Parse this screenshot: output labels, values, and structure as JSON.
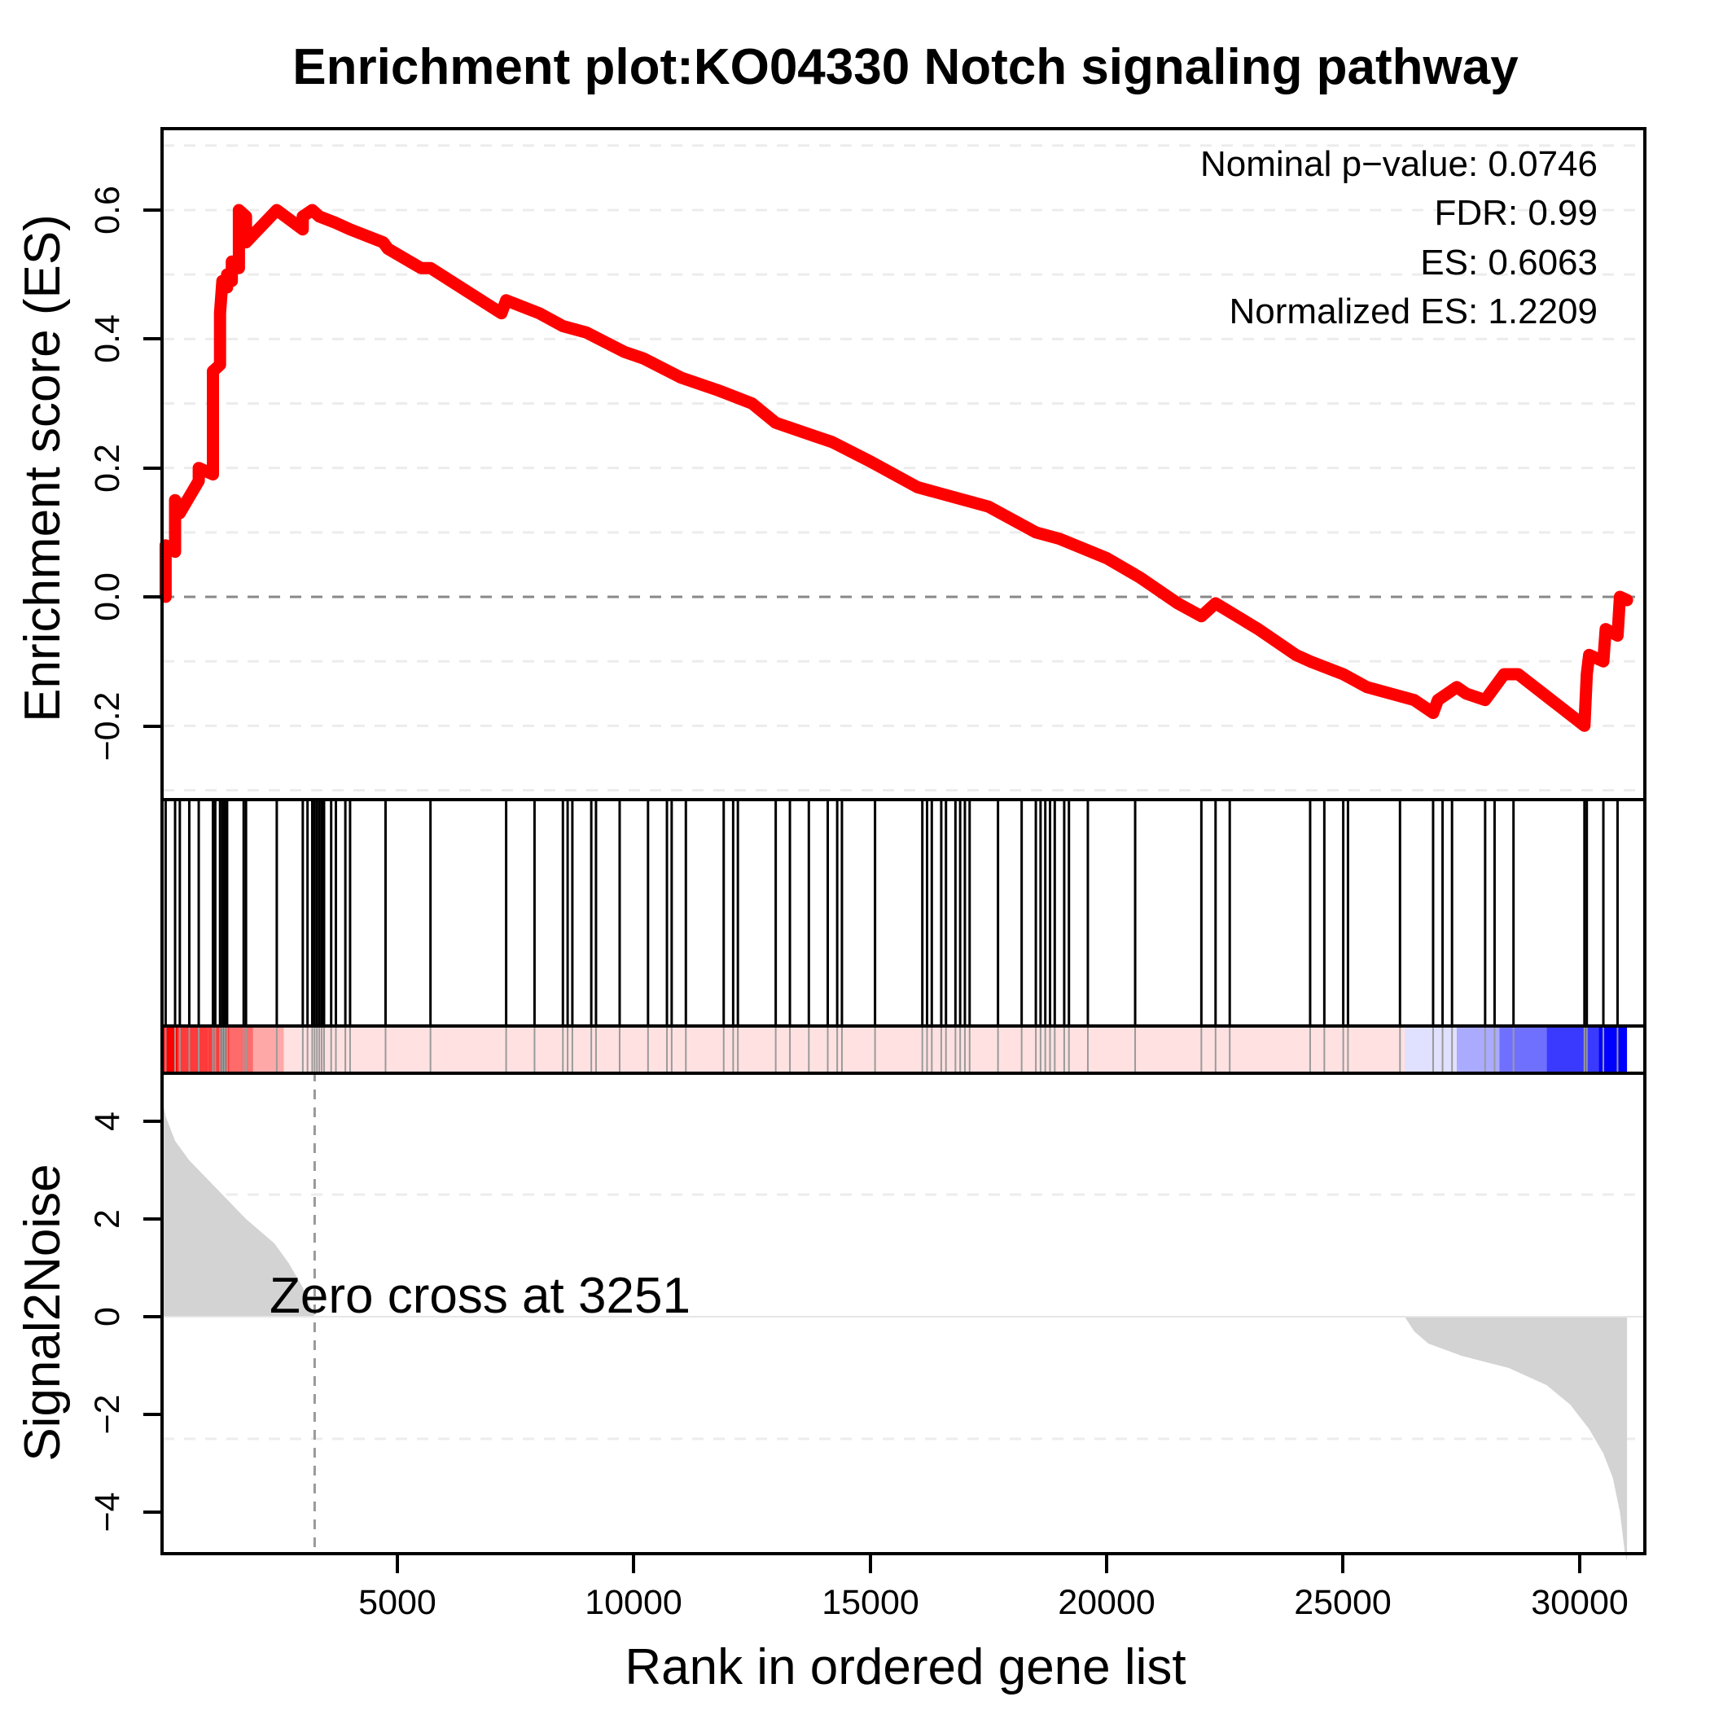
{
  "chart_data": {
    "type": "line",
    "title": "Enrichment plot:KO04330 Notch signaling pathway",
    "xlabel": "Rank in ordered gene list",
    "xlim": [
      0,
      31000
    ],
    "x_ticks": [
      5000,
      10000,
      15000,
      20000,
      25000,
      30000
    ],
    "x_tick_labels": [
      "5000",
      "10000",
      "15000",
      "20000",
      "25000",
      "30000"
    ],
    "panels": {
      "enrichment": {
        "ylabel": "Enrichment score (ES)",
        "ylim": [
          -0.32,
          0.73
        ],
        "y_ticks": [
          -0.2,
          0.0,
          0.2,
          0.4,
          0.6
        ],
        "y_tick_labels": [
          "−0.2",
          "0.0",
          "0.2",
          "0.4",
          "0.6"
        ],
        "grid": "dashed light gray at 0.1 intervals",
        "zero_line": "dashed gray",
        "line_color": "#ff0000",
        "series": {
          "name": "Running enrichment score",
          "x": [
            100,
            100,
            300,
            300,
            400,
            400,
            800,
            800,
            1100,
            1100,
            1250,
            1250,
            1300,
            1400,
            1400,
            1500,
            1500,
            1650,
            1650,
            1800,
            1800,
            2450,
            2450,
            3000,
            3000,
            3200,
            3350,
            3700,
            4000,
            4700,
            4800,
            5500,
            5700,
            7200,
            7300,
            8000,
            8500,
            9000,
            9800,
            10200,
            11000,
            11800,
            12500,
            13000,
            13800,
            14200,
            15000,
            16000,
            16500,
            17500,
            18500,
            19000,
            20000,
            20700,
            21500,
            22000,
            22300,
            23200,
            24000,
            24300,
            25000,
            25500,
            26500,
            26900,
            27000,
            27200,
            27400,
            27600,
            28000,
            28300,
            28400,
            28700,
            30100,
            30150,
            30200,
            30500,
            30550,
            30800,
            30850,
            31000
          ],
          "y": [
            0.0,
            0.08,
            0.07,
            0.15,
            0.14,
            0.13,
            0.18,
            0.2,
            0.19,
            0.35,
            0.36,
            0.44,
            0.49,
            0.48,
            0.5,
            0.49,
            0.52,
            0.51,
            0.6,
            0.59,
            0.55,
            0.6,
            0.6,
            0.57,
            0.59,
            0.6,
            0.59,
            0.58,
            0.57,
            0.55,
            0.54,
            0.51,
            0.51,
            0.44,
            0.46,
            0.44,
            0.42,
            0.41,
            0.38,
            0.37,
            0.34,
            0.32,
            0.3,
            0.27,
            0.25,
            0.24,
            0.21,
            0.17,
            0.16,
            0.14,
            0.1,
            0.09,
            0.06,
            0.03,
            -0.01,
            -0.03,
            -0.01,
            -0.05,
            -0.09,
            -0.1,
            -0.12,
            -0.14,
            -0.16,
            -0.18,
            -0.16,
            -0.15,
            -0.14,
            -0.15,
            -0.16,
            -0.13,
            -0.12,
            -0.12,
            -0.2,
            -0.12,
            -0.09,
            -0.1,
            -0.05,
            -0.06,
            0.0,
            -0.005
          ]
        },
        "peak": {
          "x": 2450,
          "y": 0.6063
        }
      },
      "hits": {
        "description": "Vertical black bars marking positions of gene-set members in the ranked list",
        "positions": [
          100,
          300,
          400,
          600,
          800,
          1100,
          1150,
          1250,
          1300,
          1350,
          1400,
          1750,
          1800,
          2450,
          3000,
          3100,
          3200,
          3250,
          3300,
          3350,
          3400,
          3450,
          3600,
          3700,
          3900,
          4000,
          4750,
          5700,
          7300,
          7900,
          8500,
          8600,
          8700,
          9100,
          9200,
          9700,
          10300,
          10700,
          10800,
          11100,
          11900,
          12100,
          12200,
          13000,
          13300,
          13700,
          14100,
          14300,
          14400,
          15100,
          16100,
          16200,
          16300,
          16500,
          16600,
          16800,
          16900,
          17000,
          17100,
          17700,
          18200,
          18500,
          18600,
          18700,
          18800,
          18900,
          19100,
          19200,
          19600,
          20600,
          22000,
          22300,
          22600,
          24300,
          24600,
          25000,
          25100,
          26200,
          26900,
          27100,
          27300,
          28000,
          28200,
          28600,
          30100,
          30150,
          30500,
          30800
        ]
      },
      "heatmap": {
        "description": "Ranked-metric color bar (red = positive, blue = negative)",
        "segments": [
          {
            "from": 0,
            "to": 350,
            "color": "#ff0000"
          },
          {
            "from": 350,
            "to": 1000,
            "color": "#ff3a3a"
          },
          {
            "from": 1000,
            "to": 1450,
            "color": "#ff3a3a"
          },
          {
            "from": 1450,
            "to": 1950,
            "color": "#ff6a6a"
          },
          {
            "from": 1950,
            "to": 2600,
            "color": "#ffa8a8"
          },
          {
            "from": 2600,
            "to": 26300,
            "color": "#ffe1e1"
          },
          {
            "from": 26300,
            "to": 27400,
            "color": "#e0e0ff"
          },
          {
            "from": 27400,
            "to": 28300,
            "color": "#aaaaff"
          },
          {
            "from": 28300,
            "to": 29300,
            "color": "#7070ff"
          },
          {
            "from": 29300,
            "to": 30400,
            "color": "#3a3aff"
          },
          {
            "from": 30400,
            "to": 31000,
            "color": "#0000ff"
          }
        ]
      },
      "ranked_metric": {
        "ylabel": "Signal2Noise",
        "ylim": [
          -5,
          5
        ],
        "y_ticks": [
          -4,
          -2,
          0,
          2,
          4
        ],
        "y_tick_labels": [
          "−4",
          "−2",
          "0",
          "2",
          "4"
        ],
        "fill_color": "#d3d3d3",
        "zero_cross": 3251,
        "annotation": "Zero cross at 3251",
        "x": [
          0,
          100,
          300,
          600,
          900,
          1200,
          1500,
          1800,
          2100,
          2400,
          2700,
          3000,
          3251,
          26300,
          26500,
          26800,
          27500,
          28500,
          29300,
          29800,
          30200,
          30500,
          30700,
          30850,
          30950,
          31000
        ],
        "y": [
          4.6,
          4.1,
          3.6,
          3.2,
          2.9,
          2.6,
          2.3,
          2.0,
          1.75,
          1.5,
          1.1,
          0.6,
          0.0,
          0.0,
          -0.3,
          -0.55,
          -0.8,
          -1.05,
          -1.4,
          -1.8,
          -2.3,
          -2.8,
          -3.3,
          -4.0,
          -4.8,
          -5.0
        ]
      }
    },
    "stats": [
      "Nominal p−value: 0.0746",
      "FDR: 0.99",
      "ES: 0.6063",
      "Normalized ES: 1.2209"
    ]
  },
  "labels": {
    "title": "Enrichment plot:KO04330 Notch signaling pathway",
    "es_ylabel": "Enrichment score (ES)",
    "s2n_ylabel": "Signal2Noise",
    "xlabel": "Rank in ordered gene list",
    "stat_pvalue": "Nominal p−value: 0.0746",
    "stat_fdr": "FDR: 0.99",
    "stat_es": "ES: 0.6063",
    "stat_nes": "Normalized ES: 1.2209",
    "zero_cross": "Zero cross at 3251",
    "xt0": "5000",
    "xt1": "10000",
    "xt2": "15000",
    "xt3": "20000",
    "xt4": "25000",
    "xt5": "30000",
    "es_t0": "−0.2",
    "es_t1": "0.0",
    "es_t2": "0.2",
    "es_t3": "0.4",
    "es_t4": "0.6",
    "s2n_t0": "−4",
    "s2n_t1": "−2",
    "s2n_t2": "0",
    "s2n_t3": "2",
    "s2n_t4": "4"
  },
  "colors": {
    "es_line": "#ff0000",
    "s2n_fill": "#d3d3d3",
    "grid": "#ececec",
    "zero_line": "#888888",
    "frame": "#000000"
  }
}
